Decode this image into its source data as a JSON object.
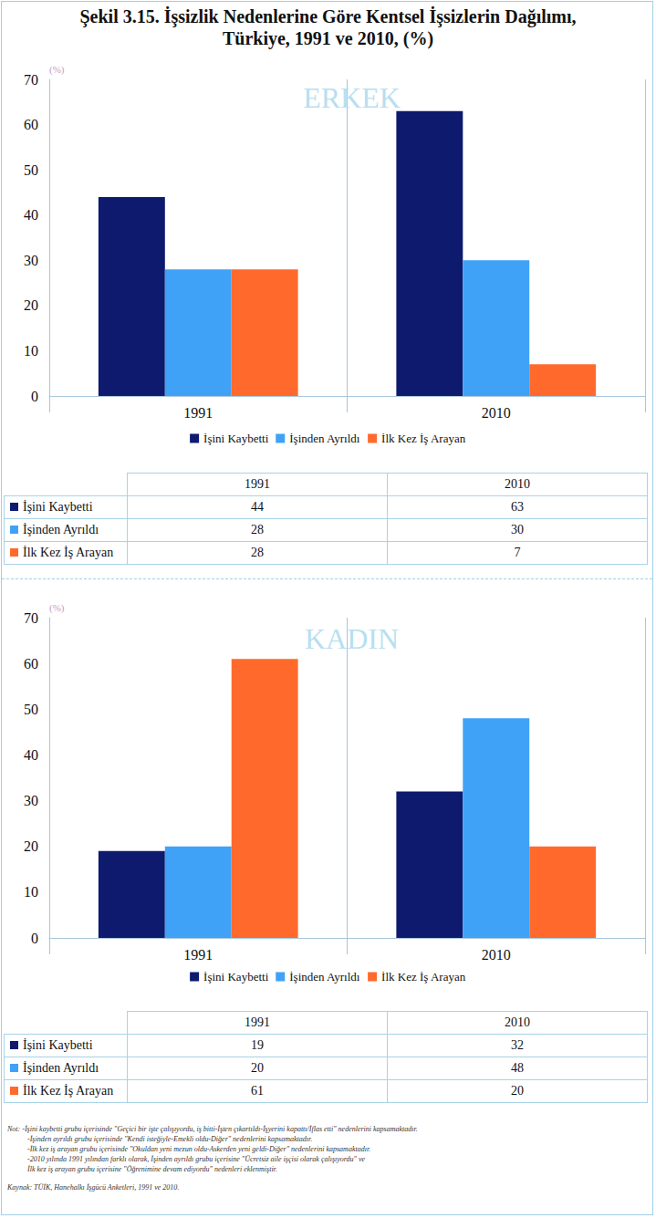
{
  "figure_title": [
    "Şekil 3.15. İşsizlik Nedenlerine Göre Kentsel İşsizlerin Dağılımı,",
    "Türkiye, 1991 ve 2010, (%)"
  ],
  "chart_data": [
    {
      "type": "bar",
      "title": "ERKEK",
      "y_label": "(%)",
      "categories": [
        "1991",
        "2010"
      ],
      "series": [
        {
          "name": "İşini Kaybetti",
          "color": "#0d1a6e",
          "values": [
            44,
            63
          ]
        },
        {
          "name": "İşinden Ayrıldı",
          "color": "#3fa2f7",
          "values": [
            28,
            30
          ]
        },
        {
          "name": "İlk Kez İş Arayan",
          "color": "#ff6a2c",
          "values": [
            28,
            7
          ]
        }
      ],
      "ylim": [
        0,
        70
      ],
      "yticks": [
        0,
        10,
        20,
        30,
        40,
        50,
        60,
        70
      ],
      "grid": "x",
      "legend": "bottom",
      "data_labels": false
    },
    {
      "type": "bar",
      "title": "KADIN",
      "y_label": "(%)",
      "categories": [
        "1991",
        "2010"
      ],
      "series": [
        {
          "name": "İşini Kaybetti",
          "color": "#0d1a6e",
          "values": [
            19,
            32
          ]
        },
        {
          "name": "İşinden Ayrıldı",
          "color": "#3fa2f7",
          "values": [
            20,
            48
          ]
        },
        {
          "name": "İlk Kez İş Arayan",
          "color": "#ff6a2c",
          "values": [
            61,
            20
          ]
        }
      ],
      "ylim": [
        0,
        70
      ],
      "yticks": [
        0,
        10,
        20,
        30,
        40,
        50,
        60,
        70
      ],
      "grid": "x",
      "legend": "bottom",
      "data_labels": false
    }
  ],
  "notes": [
    "Not: -İşini kaybetti grubu içerisinde \"Geçici bir işte çalışıyordu, iş bitti-İşten çıkartıldı-İşyerini kapattı/İflas etti\" nedenlerini kapsamaktadır.",
    "-İşinden ayrıldı grubu içerisinde \"Kendi isteğiyle-Emekli oldu-Diğer\" nedenlerini kapsamaktadır.",
    "-İlk kez iş arayan grubu içerisinde \"Okuldan yeni mezun oldu-Askerden yeni geldi-Diğer\" nedenlerini kapsamaktadır.",
    "-2010 yılında 1991 yılından farklı olarak, İşinden ayrıldı grubu içerisine \"Ücretsiz aile işçisi olarak çalışıyordu\" ve",
    " İlk kez iş arayan grubu içerisine \"Öğrenimine devam ediyordu\" nedenleri eklenmiştir."
  ],
  "source": "Kaynak: TÜİK, Hanehalkı İşgücü Anketleri, 1991 ve 2010."
}
